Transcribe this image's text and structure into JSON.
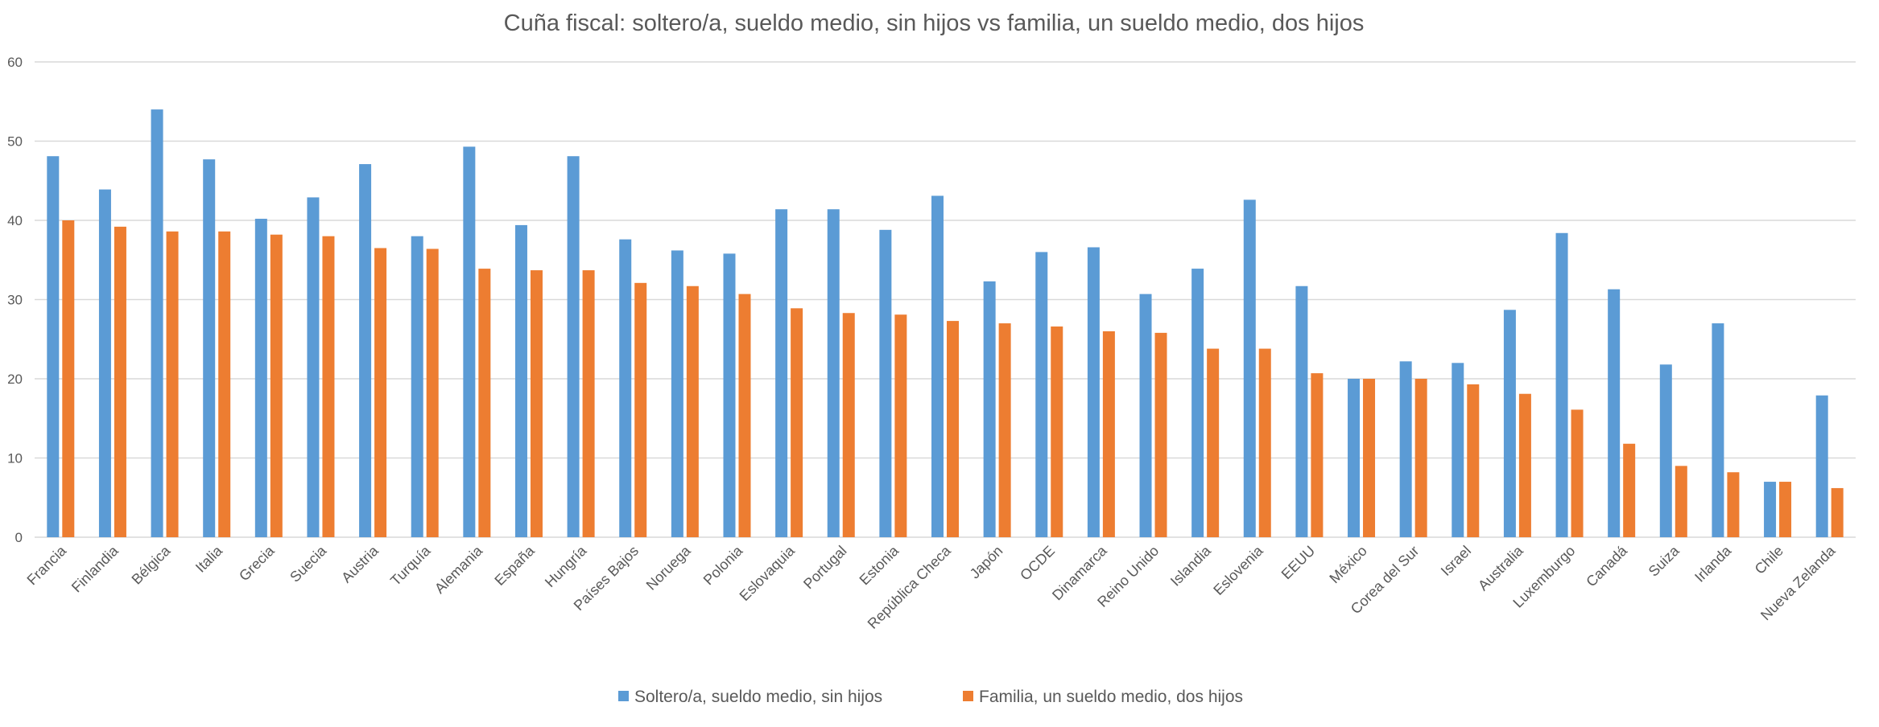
{
  "chart_data": {
    "type": "bar",
    "title": "Cuña fiscal: soltero/a, sueldo medio, sin hijos vs familia, un sueldo medio, dos hijos",
    "xlabel": "",
    "ylabel": "",
    "ylim": [
      0,
      60
    ],
    "yticks": [
      0,
      10,
      20,
      30,
      40,
      50,
      60
    ],
    "grid": true,
    "legend_position": "bottom",
    "categories": [
      "Francia",
      "Finlandia",
      "Bélgica",
      "Italia",
      "Grecia",
      "Suecia",
      "Austria",
      "Turquía",
      "Alemania",
      "España",
      "Hungría",
      "Países Bajos",
      "Noruega",
      "Polonia",
      "Eslovaquia",
      "Portugal",
      "Estonia",
      "República Checa",
      "Japón",
      "OCDE",
      "Dinamarca",
      "Reino Unido",
      "Islandia",
      "Eslovenia",
      "EEUU",
      "México",
      "Corea del Sur",
      "Israel",
      "Australia",
      "Luxemburgo",
      "Canadá",
      "Suiza",
      "Irlanda",
      "Chile",
      "Nueva Zelanda"
    ],
    "series": [
      {
        "name": "Soltero/a, sueldo medio, sin hijos",
        "color": "#5B9BD5",
        "values": [
          48.1,
          43.9,
          54.0,
          47.7,
          40.2,
          42.9,
          47.1,
          38.0,
          49.3,
          39.4,
          48.1,
          37.6,
          36.2,
          35.8,
          41.4,
          41.4,
          38.8,
          43.1,
          32.3,
          36.0,
          36.6,
          30.7,
          33.9,
          42.6,
          31.7,
          20.0,
          22.2,
          22.0,
          28.7,
          38.4,
          31.3,
          21.8,
          27.0,
          7.0,
          17.9
        ]
      },
      {
        "name": "Familia, un sueldo medio, dos hijos",
        "color": "#ED7D31",
        "values": [
          40.0,
          39.2,
          38.6,
          38.6,
          38.2,
          38.0,
          36.5,
          36.4,
          33.9,
          33.7,
          33.7,
          32.1,
          31.7,
          30.7,
          28.9,
          28.3,
          28.1,
          27.3,
          27.0,
          26.6,
          26.0,
          25.8,
          23.8,
          23.8,
          20.7,
          20.0,
          20.0,
          19.3,
          18.1,
          16.1,
          11.8,
          9.0,
          8.2,
          7.0,
          6.2
        ]
      }
    ]
  }
}
